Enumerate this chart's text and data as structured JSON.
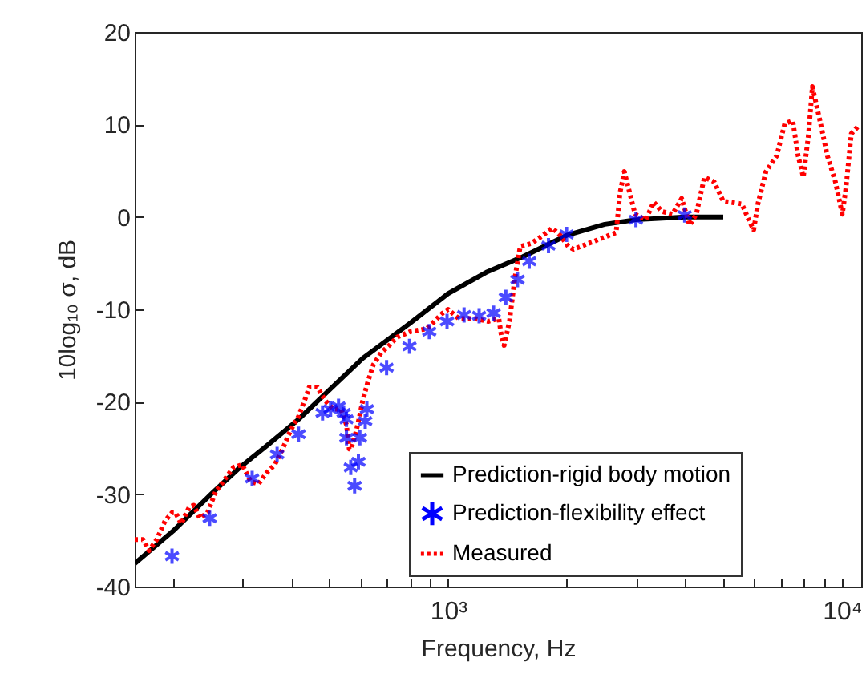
{
  "chart_data": {
    "type": "line",
    "xlabel": "Frequency, Hz",
    "ylabel": "10log₁₀ σ, dB",
    "log": "x",
    "grid": false,
    "legend": "bottom right",
    "xlim": [
      160,
      11200
    ],
    "ylim": [
      -40,
      20
    ],
    "xticks": [
      {
        "value": 200,
        "label": null
      },
      {
        "value": 300,
        "label": null
      },
      {
        "value": 400,
        "label": null
      },
      {
        "value": 500,
        "label": null
      },
      {
        "value": 600,
        "label": null
      },
      {
        "value": 700,
        "label": null
      },
      {
        "value": 800,
        "label": null
      },
      {
        "value": 900,
        "label": null
      },
      {
        "value": 1000,
        "label": "10³"
      },
      {
        "value": 2000,
        "label": null
      },
      {
        "value": 3000,
        "label": null
      },
      {
        "value": 4000,
        "label": null
      },
      {
        "value": 5000,
        "label": null
      },
      {
        "value": 6000,
        "label": null
      },
      {
        "value": 7000,
        "label": null
      },
      {
        "value": 8000,
        "label": null
      },
      {
        "value": 9000,
        "label": null
      },
      {
        "value": 10000,
        "label": "10⁴"
      }
    ],
    "yticks": [
      -40,
      -30,
      -20,
      -10,
      0,
      10,
      20
    ],
    "series": [
      {
        "name": "Prediction-rigid body motion",
        "type": "line",
        "color": "#000000",
        "line_style": "solid",
        "x": [
          160,
          200,
          250,
          296,
          350,
          417,
          500,
          607,
          800,
          1000,
          1250,
          1550,
          2000,
          2500,
          3000,
          4000,
          5000
        ],
        "values": [
          -37.5,
          -34.0,
          -30.0,
          -27.1,
          -24.6,
          -21.9,
          -18.7,
          -15.3,
          -11.5,
          -8.3,
          -6.0,
          -4.3,
          -2.0,
          -0.8,
          -0.3,
          0,
          0
        ]
      },
      {
        "name": "Prediction-flexibility effect",
        "type": "scatter",
        "marker": "cross",
        "color": "#0000ff",
        "x": [
          199,
          248,
          318,
          368,
          417,
          480,
          503,
          527,
          543,
          552,
          552,
          566,
          579,
          592,
          597,
          616,
          622,
          698,
          798,
          896,
          994,
          1098,
          1199,
          1305,
          1402,
          1501,
          1607,
          1799,
          2000,
          3000,
          3990
        ],
        "values": [
          -36.7,
          -32.6,
          -28.3,
          -25.7,
          -23.5,
          -21.2,
          -20.8,
          -20.5,
          -21.2,
          -21.9,
          -23.9,
          -27.1,
          -29.1,
          -26.5,
          -23.9,
          -22.1,
          -20.8,
          -16.3,
          -14.0,
          -12.4,
          -11.3,
          -10.6,
          -10.7,
          -10.4,
          -8.7,
          -6.8,
          -4.8,
          -3.1,
          -1.9,
          -0.3,
          0.2
        ]
      },
      {
        "name": "Measured",
        "type": "line",
        "line_style": "dotted",
        "color": "#ff0000",
        "x": [
          160,
          168,
          174,
          182,
          191,
          199,
          203,
          210,
          220,
          226,
          234,
          245,
          257,
          269,
          285,
          300,
          315,
          330,
          346,
          363,
          380,
          398,
          417,
          437,
          444,
          465,
          488,
          511,
          535,
          552,
          561,
          566,
          585,
          597,
          607,
          625,
          646,
          676,
          709,
          743,
          803,
          883,
          969,
          1000,
          1065,
          1169,
          1264,
          1346,
          1367,
          1388,
          1432,
          1478,
          1525,
          1623,
          1727,
          1839,
          1928,
          2020,
          2083,
          2672,
          2733,
          2803,
          2893,
          2985,
          3177,
          3329,
          3490,
          3715,
          3920,
          4106,
          4271,
          4478,
          4739,
          5000,
          5575,
          5843,
          5974,
          6121,
          6416,
          6833,
          7163,
          7506,
          7745,
          7986,
          8236,
          8420,
          8770,
          9193,
          9632,
          10030,
          10250,
          10570,
          11000
        ],
        "values": [
          -34.9,
          -34.9,
          -36.1,
          -34.9,
          -32.9,
          -32.0,
          -32.0,
          -33.2,
          -31.4,
          -31.2,
          -32.6,
          -32.0,
          -29.7,
          -28.6,
          -27.1,
          -26.8,
          -28.6,
          -28.9,
          -27.7,
          -26.8,
          -25.1,
          -23.1,
          -21.6,
          -19.3,
          -18.4,
          -18.4,
          -19.9,
          -20.8,
          -20.8,
          -22.5,
          -25.1,
          -25.2,
          -23.1,
          -21.4,
          -19.9,
          -17.9,
          -16.0,
          -14.7,
          -13.9,
          -13.0,
          -12.4,
          -12.1,
          -10.4,
          -10.0,
          -11.0,
          -11.0,
          -11.3,
          -11.0,
          -13.0,
          -13.9,
          -11.3,
          -6.6,
          -3.2,
          -2.9,
          -2.1,
          -1.2,
          -2.0,
          -3.2,
          -3.5,
          -1.7,
          2.6,
          4.9,
          2.6,
          0.3,
          -0.3,
          1.6,
          0.6,
          0.3,
          2.0,
          -0.9,
          0.3,
          4.3,
          3.8,
          1.7,
          1.4,
          -0.6,
          -1.4,
          1.4,
          4.9,
          6.6,
          10.1,
          10.4,
          6.6,
          4.3,
          9.0,
          14.1,
          10.7,
          6.6,
          3.8,
          0.3,
          3.2,
          9.0,
          9.8
        ]
      }
    ]
  }
}
